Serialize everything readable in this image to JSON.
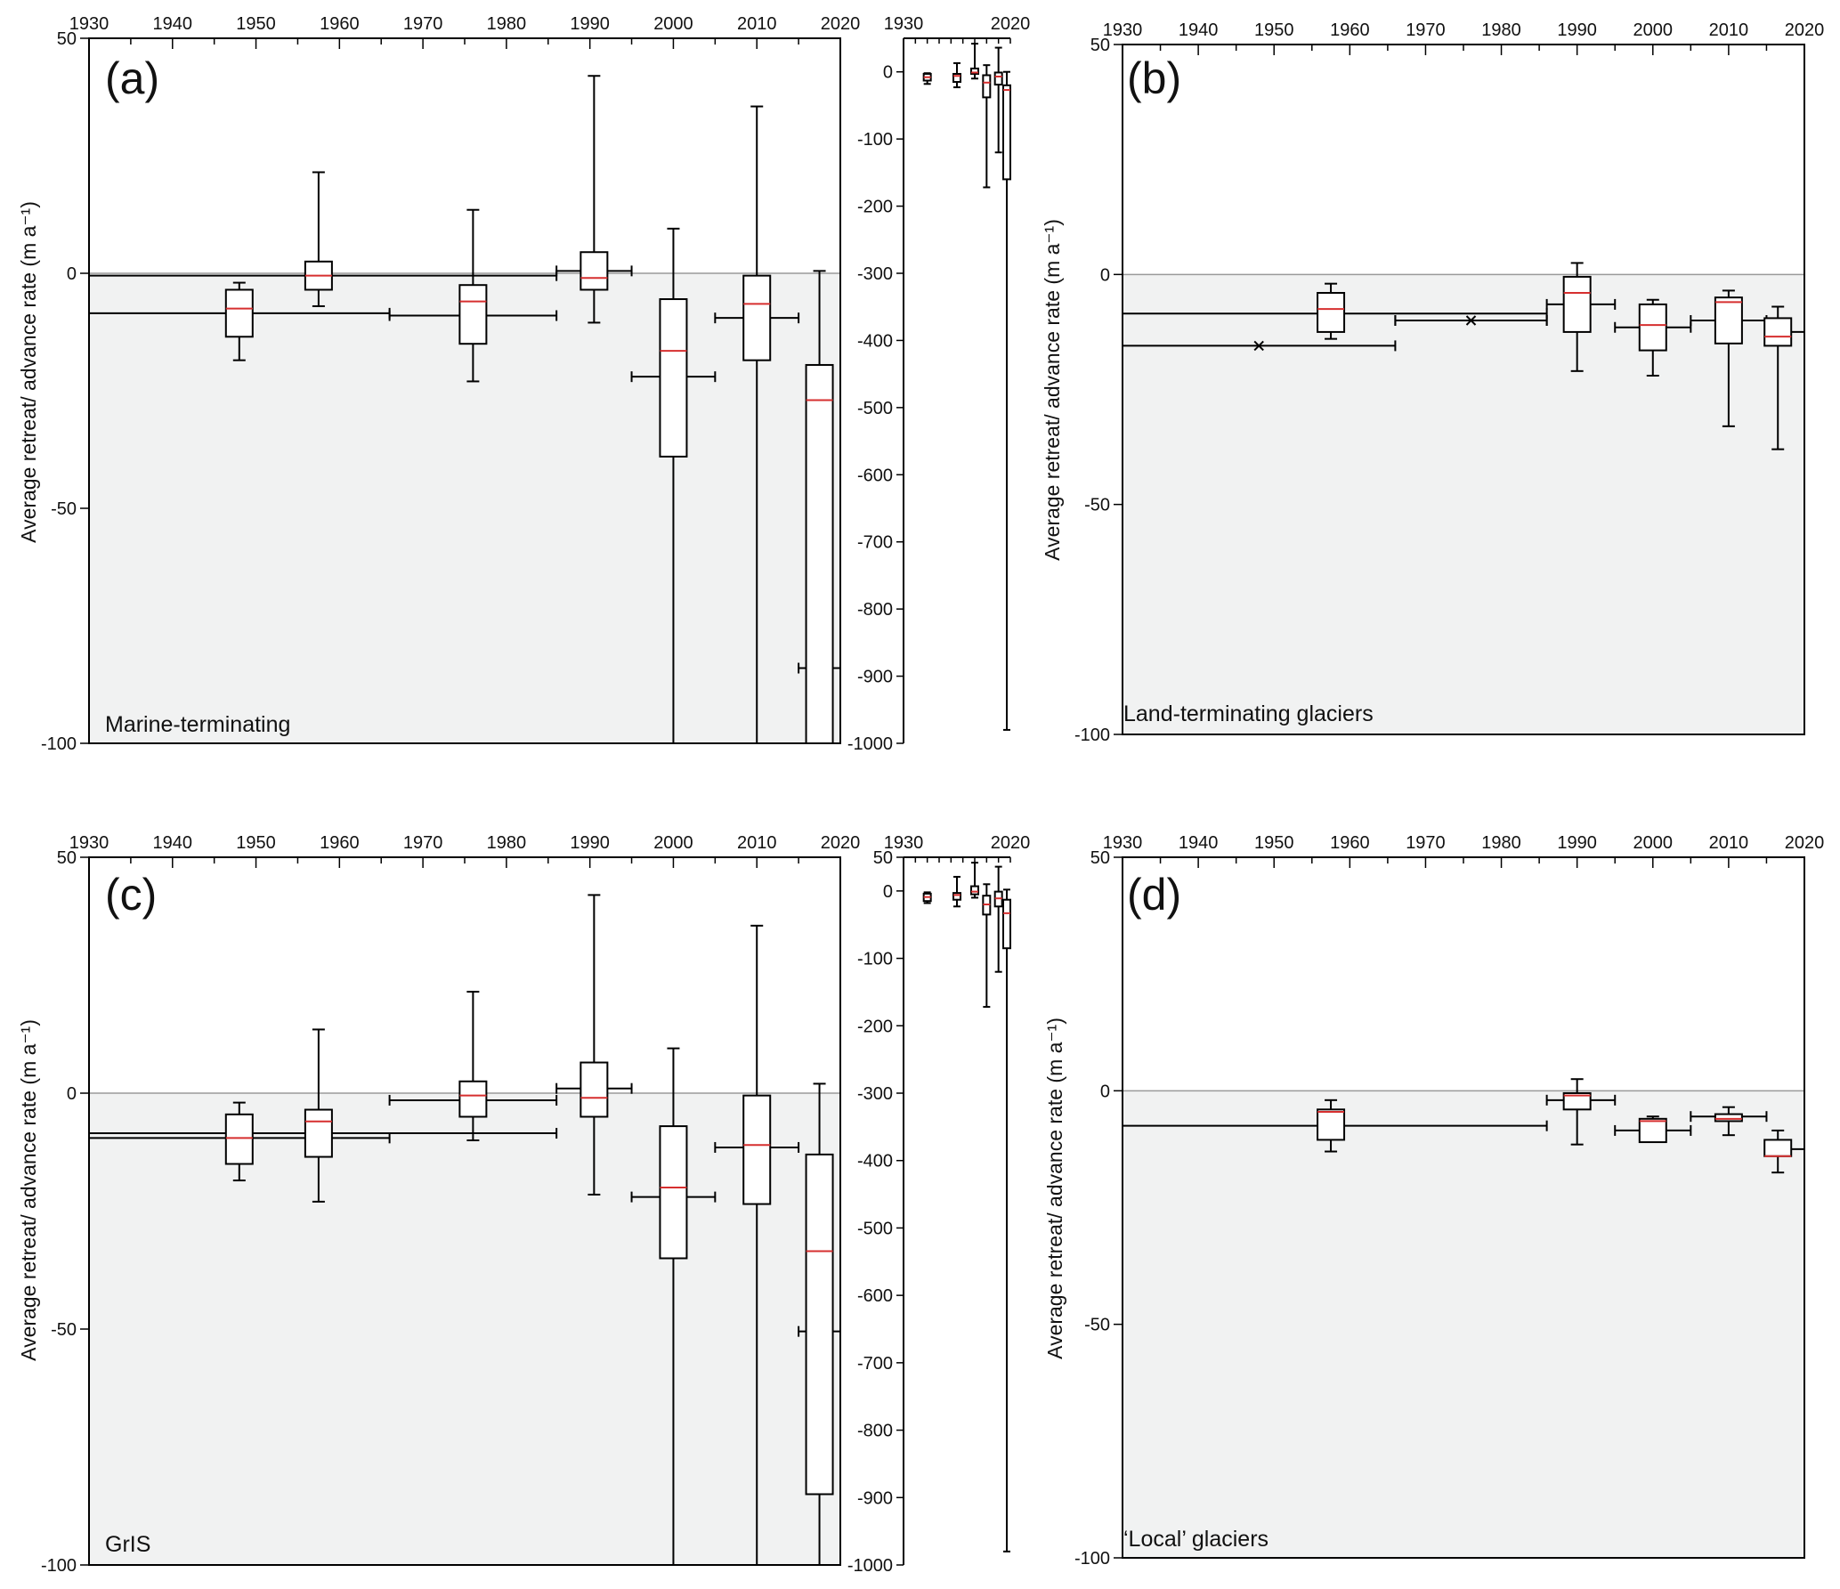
{
  "colors": {
    "negative_fill": "#f1f2f2",
    "median": "#d62f2f",
    "axis": "#000000",
    "zero_line": "#9a9a9a"
  },
  "chart_data": [
    {
      "id": "a",
      "type": "boxplot",
      "letter": "(a)",
      "caption": "Marine-terminating",
      "ylabel": "Average retreat/ advance rate (m a⁻¹)",
      "xlim": [
        1930,
        2020
      ],
      "ylim": [
        -100,
        50
      ],
      "x_ticks": [
        1930,
        1940,
        1950,
        1960,
        1970,
        1980,
        1990,
        2000,
        2010,
        2020
      ],
      "y_ticks": [
        50,
        0,
        -50,
        -100
      ],
      "boxes": [
        {
          "x": 1948,
          "whisker_low": -18.5,
          "q1": -13.5,
          "median": -7.5,
          "q3": -3.5,
          "whisker_high": -2
        },
        {
          "x": 1957.5,
          "whisker_low": -7,
          "q1": -3.5,
          "median": -0.5,
          "q3": 2.5,
          "whisker_high": 21.5
        },
        {
          "x": 1976,
          "whisker_low": -23,
          "q1": -15,
          "median": -6,
          "q3": -2.5,
          "whisker_high": 13.5
        },
        {
          "x": 1990.5,
          "whisker_low": -10.5,
          "q1": -3.5,
          "median": -1,
          "q3": 4.5,
          "whisker_high": 42
        },
        {
          "x": 2000,
          "whisker_low": -100,
          "q1": -39,
          "median": -16.5,
          "q3": -5.5,
          "whisker_high": 9.5
        },
        {
          "x": 2010,
          "whisker_low": -100,
          "q1": -18.5,
          "median": -6.5,
          "q3": -0.5,
          "whisker_high": 35.5
        },
        {
          "x": 2017.5,
          "whisker_low": -100,
          "q1": -100,
          "median": -27,
          "q3": -19.5,
          "whisker_high": 0.5
        }
      ],
      "periods": [
        {
          "start": 1930,
          "end": 1986,
          "value": -0.5
        },
        {
          "start": 1930,
          "end": 1966,
          "value": -8.5
        },
        {
          "start": 1966,
          "end": 1986,
          "value": -9
        },
        {
          "start": 1986,
          "end": 1995,
          "value": 0.5
        },
        {
          "start": 1995,
          "end": 2005,
          "value": -22
        },
        {
          "start": 2005,
          "end": 2015,
          "value": -9.5
        },
        {
          "start": 2015,
          "end": 2020,
          "value": -84
        }
      ],
      "crosses": [],
      "inset": {
        "xlim": [
          1930,
          2020
        ],
        "ylim": [
          -1000,
          50
        ],
        "x_ticks": [
          1930,
          2020
        ],
        "y_ticks": [
          0,
          -100,
          -200,
          -300,
          -400,
          -500,
          -600,
          -700,
          -800,
          -900,
          -1000
        ],
        "boxes": [
          {
            "x": 1950,
            "whisker_low": -18,
            "q1": -13,
            "median": -8,
            "q3": -3,
            "whisker_high": -2
          },
          {
            "x": 1975,
            "whisker_low": -23,
            "q1": -15,
            "median": -6,
            "q3": -3,
            "whisker_high": 13
          },
          {
            "x": 1990,
            "whisker_low": -10,
            "q1": -3,
            "median": -1,
            "q3": 5,
            "whisker_high": 42
          },
          {
            "x": 2000,
            "whisker_low": -172,
            "q1": -38,
            "median": -16,
            "q3": -5,
            "whisker_high": 10
          },
          {
            "x": 2010,
            "whisker_low": -120,
            "q1": -19,
            "median": -7,
            "q3": -1,
            "whisker_high": 36
          },
          {
            "x": 2017,
            "whisker_low": -980,
            "q1": -160,
            "median": -27,
            "q3": -20,
            "whisker_high": 0
          }
        ]
      }
    },
    {
      "id": "b",
      "type": "boxplot",
      "letter": "(b)",
      "caption": "Land-terminating glaciers",
      "ylabel": "Average retreat/ advance rate (m a⁻¹)",
      "xlim": [
        1930,
        2020
      ],
      "ylim": [
        -100,
        50
      ],
      "x_ticks": [
        1930,
        1940,
        1950,
        1960,
        1970,
        1980,
        1990,
        2000,
        2010,
        2020
      ],
      "y_ticks": [
        50,
        0,
        -50,
        -100
      ],
      "boxes": [
        {
          "x": 1957.5,
          "whisker_low": -14,
          "q1": -12.5,
          "median": -7.5,
          "q3": -4,
          "whisker_high": -2
        },
        {
          "x": 1990,
          "whisker_low": -21,
          "q1": -12.5,
          "median": -4,
          "q3": -0.5,
          "whisker_high": 2.5
        },
        {
          "x": 2000,
          "whisker_low": -22,
          "q1": -16.5,
          "median": -11,
          "q3": -6.5,
          "whisker_high": -5.5
        },
        {
          "x": 2010,
          "whisker_low": -33,
          "q1": -15,
          "median": -6,
          "q3": -5,
          "whisker_high": -3.5
        },
        {
          "x": 2016.5,
          "whisker_low": -38,
          "q1": -15.5,
          "median": -13.5,
          "q3": -9.5,
          "whisker_high": -7
        }
      ],
      "periods": [
        {
          "start": 1930,
          "end": 1986,
          "value": -8.5
        },
        {
          "start": 1966,
          "end": 1986,
          "value": -10
        },
        {
          "start": 1986,
          "end": 1995,
          "value": -6.5
        },
        {
          "start": 1995,
          "end": 2005,
          "value": -11.5
        },
        {
          "start": 2005,
          "end": 2015,
          "value": -10
        },
        {
          "start": 2015,
          "end": 2020,
          "value": -12.5
        }
      ],
      "crosses": [
        {
          "start": 1930,
          "end": 1966,
          "x": 1948,
          "value": -15.5
        },
        {
          "start": 1966,
          "end": 1986,
          "x": 1976,
          "value": -10
        }
      ]
    },
    {
      "id": "c",
      "type": "boxplot",
      "letter": "(c)",
      "caption": "GrIS",
      "ylabel": "Average retreat/ advance rate (m a⁻¹)",
      "xlim": [
        1930,
        2020
      ],
      "ylim": [
        -100,
        50
      ],
      "x_ticks": [
        1930,
        1940,
        1950,
        1960,
        1970,
        1980,
        1990,
        2000,
        2010,
        2020
      ],
      "y_ticks": [
        50,
        0,
        -50,
        -100
      ],
      "boxes": [
        {
          "x": 1948,
          "whisker_low": -18.5,
          "q1": -15,
          "median": -9.5,
          "q3": -4.5,
          "whisker_high": -2
        },
        {
          "x": 1957.5,
          "whisker_low": -23,
          "q1": -13.5,
          "median": -6,
          "q3": -3.5,
          "whisker_high": 13.5
        },
        {
          "x": 1976,
          "whisker_low": -10,
          "q1": -5,
          "median": -0.5,
          "q3": 2.5,
          "whisker_high": 21.5
        },
        {
          "x": 1990.5,
          "whisker_low": -21.5,
          "q1": -5,
          "median": -1,
          "q3": 6.5,
          "whisker_high": 42
        },
        {
          "x": 2000,
          "whisker_low": -100,
          "q1": -35,
          "median": -20,
          "q3": -7,
          "whisker_high": 9.5
        },
        {
          "x": 2010,
          "whisker_low": -100,
          "q1": -23.5,
          "median": -11,
          "q3": -0.5,
          "whisker_high": 35.5
        },
        {
          "x": 2017.5,
          "whisker_low": -100,
          "q1": -85,
          "median": -33.5,
          "q3": -13,
          "whisker_high": 2
        }
      ],
      "periods": [
        {
          "start": 1930,
          "end": 1986,
          "value": -8.5
        },
        {
          "start": 1930,
          "end": 1966,
          "value": -9.5
        },
        {
          "start": 1966,
          "end": 1986,
          "value": -1.5
        },
        {
          "start": 1986,
          "end": 1995,
          "value": 1
        },
        {
          "start": 1995,
          "end": 2005,
          "value": -22
        },
        {
          "start": 2005,
          "end": 2015,
          "value": -11.5
        },
        {
          "start": 2015,
          "end": 2020,
          "value": -50.5
        }
      ],
      "crosses": [],
      "inset": {
        "xlim": [
          1930,
          2020
        ],
        "ylim": [
          -1000,
          50
        ],
        "x_ticks": [
          1930,
          2020
        ],
        "y_ticks": [
          50,
          0,
          -100,
          -200,
          -300,
          -400,
          -500,
          -600,
          -700,
          -800,
          -900,
          -1000
        ],
        "boxes": [
          {
            "x": 1950,
            "whisker_low": -18,
            "q1": -15,
            "median": -9,
            "q3": -4,
            "whisker_high": -2
          },
          {
            "x": 1975,
            "whisker_low": -23,
            "q1": -13,
            "median": -6,
            "q3": -3,
            "whisker_high": 21
          },
          {
            "x": 1990,
            "whisker_low": -10,
            "q1": -5,
            "median": -1,
            "q3": 7,
            "whisker_high": 42
          },
          {
            "x": 2000,
            "whisker_low": -172,
            "q1": -35,
            "median": -20,
            "q3": -7,
            "whisker_high": 10
          },
          {
            "x": 2010,
            "whisker_low": -120,
            "q1": -23,
            "median": -11,
            "q3": -1,
            "whisker_high": 36
          },
          {
            "x": 2017,
            "whisker_low": -980,
            "q1": -85,
            "median": -33,
            "q3": -13,
            "whisker_high": 2
          }
        ]
      }
    },
    {
      "id": "d",
      "type": "boxplot",
      "letter": "(d)",
      "caption": "‘Local’ glaciers",
      "ylabel": "Average retreat/ advance rate (m a⁻¹)",
      "xlim": [
        1930,
        2020
      ],
      "ylim": [
        -100,
        50
      ],
      "x_ticks": [
        1930,
        1940,
        1950,
        1960,
        1970,
        1980,
        1990,
        2000,
        2010,
        2020
      ],
      "y_ticks": [
        50,
        0,
        -50,
        -100
      ],
      "boxes": [
        {
          "x": 1957.5,
          "whisker_low": -13,
          "q1": -10.5,
          "median": -4.5,
          "q3": -4,
          "whisker_high": -2
        },
        {
          "x": 1990,
          "whisker_low": -11.5,
          "q1": -4,
          "median": -1,
          "q3": -0.5,
          "whisker_high": 2.5
        },
        {
          "x": 2000,
          "whisker_low": -11,
          "q1": -11,
          "median": -6.5,
          "q3": -6,
          "whisker_high": -5.5
        },
        {
          "x": 2010,
          "whisker_low": -9.5,
          "q1": -6.5,
          "median": -6,
          "q3": -5,
          "whisker_high": -3.5
        },
        {
          "x": 2016.5,
          "whisker_low": -17.5,
          "q1": -14,
          "median": -14,
          "q3": -10.5,
          "whisker_high": -8.5
        }
      ],
      "periods": [
        {
          "start": 1930,
          "end": 1986,
          "value": -7.5
        },
        {
          "start": 1986,
          "end": 1995,
          "value": -2
        },
        {
          "start": 1995,
          "end": 2005,
          "value": -8.5
        },
        {
          "start": 2005,
          "end": 2015,
          "value": -5.5
        },
        {
          "start": 2015,
          "end": 2020,
          "value": -12.5
        }
      ],
      "crosses": []
    }
  ]
}
